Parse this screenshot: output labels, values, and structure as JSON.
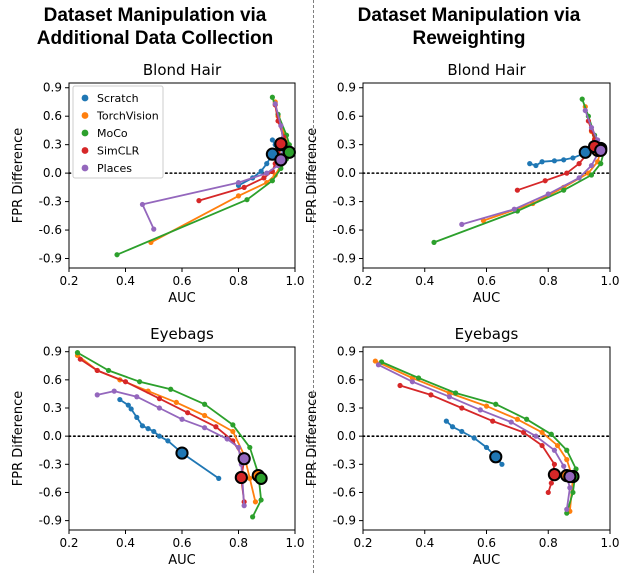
{
  "figure": {
    "column_titles": [
      [
        "Dataset Manipulation via",
        "Additional Data Collection"
      ],
      [
        "Dataset Manipulation via",
        "Reweighting"
      ]
    ]
  },
  "colors": {
    "Scratch": "#1f77b4",
    "TorchVision": "#ff7f0e",
    "MoCo": "#2ca02c",
    "SimCLR": "#d62728",
    "Places": "#9467bd"
  },
  "legend": {
    "placement": "upper-left of top-left panel",
    "entries": [
      "Scratch",
      "TorchVision",
      "MoCo",
      "SimCLR",
      "Places"
    ]
  },
  "chart_data": [
    {
      "type": "line",
      "title": "Blond Hair",
      "xlabel": "AUC",
      "ylabel": "FPR Difference",
      "xlim": [
        0.2,
        1.0
      ],
      "ylim": [
        -1.0,
        0.95
      ],
      "xticks": [
        "0.2",
        "0.4",
        "0.6",
        "0.8",
        "1.0"
      ],
      "yticks": [
        "0.9",
        "0.6",
        "0.3",
        "0.0",
        "-0.3",
        "-0.6",
        "-0.9"
      ],
      "reference_line": 0,
      "series": [
        {
          "name": "Scratch",
          "points": [
            [
              0.92,
              0.35
            ],
            [
              0.93,
              0.3
            ],
            [
              0.95,
              0.28
            ],
            [
              0.96,
              0.25
            ],
            [
              0.95,
              0.18
            ],
            [
              0.92,
              0.2
            ],
            [
              0.9,
              0.1
            ],
            [
              0.88,
              0.02
            ],
            [
              0.85,
              -0.05
            ],
            [
              0.8,
              -0.13
            ]
          ],
          "highlight": [
            0.92,
            0.2
          ]
        },
        {
          "name": "TorchVision",
          "points": [
            [
              0.93,
              0.75
            ],
            [
              0.94,
              0.6
            ],
            [
              0.96,
              0.42
            ],
            [
              0.97,
              0.33
            ],
            [
              0.97,
              0.24
            ],
            [
              0.96,
              0.15
            ],
            [
              0.95,
              0.08
            ],
            [
              0.93,
              -0.02
            ],
            [
              0.9,
              -0.1
            ],
            [
              0.8,
              -0.24
            ],
            [
              0.49,
              -0.73
            ]
          ],
          "highlight": [
            0.95,
            0.3
          ]
        },
        {
          "name": "MoCo",
          "points": [
            [
              0.92,
              0.8
            ],
            [
              0.94,
              0.62
            ],
            [
              0.97,
              0.4
            ],
            [
              0.98,
              0.3
            ],
            [
              0.98,
              0.23
            ],
            [
              0.97,
              0.15
            ],
            [
              0.95,
              0.05
            ],
            [
              0.92,
              -0.08
            ],
            [
              0.83,
              -0.28
            ],
            [
              0.37,
              -0.86
            ]
          ],
          "highlight": [
            0.98,
            0.22
          ]
        },
        {
          "name": "SimCLR",
          "points": [
            [
              0.93,
              0.72
            ],
            [
              0.94,
              0.55
            ],
            [
              0.96,
              0.38
            ],
            [
              0.95,
              0.3
            ],
            [
              0.94,
              0.22
            ],
            [
              0.93,
              0.1
            ],
            [
              0.92,
              0.02
            ],
            [
              0.89,
              -0.05
            ],
            [
              0.82,
              -0.15
            ],
            [
              0.66,
              -0.29
            ]
          ],
          "highlight": [
            0.95,
            0.31
          ]
        },
        {
          "name": "Places",
          "points": [
            [
              0.93,
              0.73
            ],
            [
              0.95,
              0.5
            ],
            [
              0.96,
              0.3
            ],
            [
              0.96,
              0.2
            ],
            [
              0.95,
              0.14
            ],
            [
              0.94,
              0.08
            ],
            [
              0.9,
              0.0
            ],
            [
              0.8,
              -0.1
            ],
            [
              0.46,
              -0.33
            ],
            [
              0.5,
              -0.59
            ]
          ],
          "highlight": [
            0.95,
            0.14
          ]
        }
      ]
    },
    {
      "type": "line",
      "title": "Blond Hair",
      "xlabel": "AUC",
      "ylabel": "FPR Difference",
      "xlim": [
        0.2,
        1.0
      ],
      "ylim": [
        -1.0,
        0.95
      ],
      "xticks": [
        "0.2",
        "0.4",
        "0.6",
        "0.8",
        "1.0"
      ],
      "yticks": [
        "0.9",
        "0.6",
        "0.3",
        "0.0",
        "-0.3",
        "-0.6",
        "-0.9"
      ],
      "reference_line": 0,
      "series": [
        {
          "name": "Scratch",
          "points": [
            [
              0.74,
              0.1
            ],
            [
              0.76,
              0.08
            ],
            [
              0.78,
              0.12
            ],
            [
              0.82,
              0.13
            ],
            [
              0.85,
              0.14
            ],
            [
              0.88,
              0.16
            ],
            [
              0.91,
              0.2
            ],
            [
              0.93,
              0.25
            ],
            [
              0.95,
              0.27
            ]
          ],
          "highlight": [
            0.92,
            0.22
          ]
        },
        {
          "name": "TorchVision",
          "points": [
            [
              0.92,
              0.7
            ],
            [
              0.94,
              0.44
            ],
            [
              0.95,
              0.36
            ],
            [
              0.96,
              0.3
            ],
            [
              0.97,
              0.24
            ],
            [
              0.96,
              0.12
            ],
            [
              0.93,
              0.0
            ],
            [
              0.85,
              -0.15
            ],
            [
              0.75,
              -0.32
            ],
            [
              0.59,
              -0.5
            ]
          ],
          "highlight": [
            0.96,
            0.24
          ]
        },
        {
          "name": "MoCo",
          "points": [
            [
              0.91,
              0.78
            ],
            [
              0.93,
              0.6
            ],
            [
              0.95,
              0.4
            ],
            [
              0.97,
              0.3
            ],
            [
              0.98,
              0.22
            ],
            [
              0.97,
              0.1
            ],
            [
              0.94,
              -0.02
            ],
            [
              0.85,
              -0.18
            ],
            [
              0.7,
              -0.4
            ],
            [
              0.43,
              -0.73
            ]
          ],
          "highlight": [
            0.97,
            0.26
          ]
        },
        {
          "name": "SimCLR",
          "points": [
            [
              0.93,
              0.55
            ],
            [
              0.94,
              0.45
            ],
            [
              0.95,
              0.35
            ],
            [
              0.94,
              0.28
            ],
            [
              0.93,
              0.22
            ],
            [
              0.9,
              0.1
            ],
            [
              0.86,
              0.0
            ],
            [
              0.79,
              -0.08
            ],
            [
              0.7,
              -0.18
            ]
          ],
          "highlight": [
            0.95,
            0.28
          ]
        },
        {
          "name": "Places",
          "points": [
            [
              0.92,
              0.66
            ],
            [
              0.94,
              0.48
            ],
            [
              0.96,
              0.35
            ],
            [
              0.97,
              0.28
            ],
            [
              0.96,
              0.2
            ],
            [
              0.94,
              0.08
            ],
            [
              0.9,
              -0.05
            ],
            [
              0.8,
              -0.22
            ],
            [
              0.69,
              -0.38
            ],
            [
              0.52,
              -0.54
            ]
          ],
          "highlight": [
            0.97,
            0.24
          ]
        }
      ]
    },
    {
      "type": "line",
      "title": "Eyebags",
      "xlabel": "AUC",
      "ylabel": "FPR Difference",
      "xlim": [
        0.2,
        1.0
      ],
      "ylim": [
        -1.0,
        0.95
      ],
      "xticks": [
        "0.2",
        "0.4",
        "0.6",
        "0.8",
        "1.0"
      ],
      "yticks": [
        "0.9",
        "0.6",
        "0.3",
        "0.0",
        "-0.3",
        "-0.6",
        "-0.9"
      ],
      "reference_line": 0,
      "series": [
        {
          "name": "Scratch",
          "points": [
            [
              0.38,
              0.39
            ],
            [
              0.41,
              0.33
            ],
            [
              0.42,
              0.29
            ],
            [
              0.44,
              0.2
            ],
            [
              0.46,
              0.11
            ],
            [
              0.48,
              0.08
            ],
            [
              0.5,
              0.05
            ],
            [
              0.52,
              0.0
            ],
            [
              0.55,
              -0.05
            ],
            [
              0.6,
              -0.18
            ],
            [
              0.73,
              -0.45
            ]
          ],
          "highlight": [
            0.6,
            -0.18
          ]
        },
        {
          "name": "TorchVision",
          "points": [
            [
              0.23,
              0.86
            ],
            [
              0.3,
              0.7
            ],
            [
              0.38,
              0.6
            ],
            [
              0.48,
              0.48
            ],
            [
              0.58,
              0.36
            ],
            [
              0.68,
              0.22
            ],
            [
              0.78,
              0.05
            ],
            [
              0.82,
              -0.2
            ],
            [
              0.84,
              -0.45
            ],
            [
              0.86,
              -0.7
            ]
          ],
          "highlight": [
            0.87,
            -0.42
          ]
        },
        {
          "name": "MoCo",
          "points": [
            [
              0.23,
              0.89
            ],
            [
              0.34,
              0.7
            ],
            [
              0.45,
              0.58
            ],
            [
              0.56,
              0.5
            ],
            [
              0.68,
              0.34
            ],
            [
              0.78,
              0.12
            ],
            [
              0.84,
              -0.12
            ],
            [
              0.87,
              -0.4
            ],
            [
              0.88,
              -0.68
            ],
            [
              0.85,
              -0.86
            ]
          ],
          "highlight": [
            0.88,
            -0.45
          ]
        },
        {
          "name": "SimCLR",
          "points": [
            [
              0.24,
              0.82
            ],
            [
              0.3,
              0.7
            ],
            [
              0.4,
              0.58
            ],
            [
              0.52,
              0.4
            ],
            [
              0.62,
              0.25
            ],
            [
              0.72,
              0.1
            ],
            [
              0.78,
              -0.05
            ],
            [
              0.82,
              -0.25
            ],
            [
              0.81,
              -0.45
            ],
            [
              0.82,
              -0.7
            ]
          ],
          "highlight": [
            0.81,
            -0.44
          ]
        },
        {
          "name": "Places",
          "points": [
            [
              0.3,
              0.44
            ],
            [
              0.36,
              0.48
            ],
            [
              0.44,
              0.42
            ],
            [
              0.52,
              0.3
            ],
            [
              0.6,
              0.18
            ],
            [
              0.68,
              0.09
            ],
            [
              0.76,
              -0.03
            ],
            [
              0.8,
              -0.12
            ],
            [
              0.81,
              -0.3
            ],
            [
              0.82,
              -0.74
            ]
          ],
          "highlight": [
            0.82,
            -0.24
          ]
        }
      ]
    },
    {
      "type": "line",
      "title": "Eyebags",
      "xlabel": "AUC",
      "ylabel": "FPR Difference",
      "xlim": [
        0.2,
        1.0
      ],
      "ylim": [
        -1.0,
        0.95
      ],
      "xticks": [
        "0.2",
        "0.4",
        "0.6",
        "0.8",
        "1.0"
      ],
      "yticks": [
        "0.9",
        "0.6",
        "0.3",
        "0.0",
        "-0.3",
        "-0.6",
        "-0.9"
      ],
      "reference_line": 0,
      "series": [
        {
          "name": "Scratch",
          "points": [
            [
              0.47,
              0.16
            ],
            [
              0.49,
              0.1
            ],
            [
              0.52,
              0.05
            ],
            [
              0.56,
              -0.02
            ],
            [
              0.6,
              -0.12
            ],
            [
              0.63,
              -0.22
            ],
            [
              0.65,
              -0.3
            ]
          ],
          "highlight": [
            0.63,
            -0.22
          ]
        },
        {
          "name": "TorchVision",
          "points": [
            [
              0.24,
              0.8
            ],
            [
              0.36,
              0.62
            ],
            [
              0.48,
              0.46
            ],
            [
              0.6,
              0.32
            ],
            [
              0.7,
              0.18
            ],
            [
              0.78,
              0.04
            ],
            [
              0.83,
              -0.1
            ],
            [
              0.86,
              -0.25
            ],
            [
              0.88,
              -0.45
            ],
            [
              0.87,
              -0.8
            ]
          ],
          "highlight": [
            0.86,
            -0.42
          ]
        },
        {
          "name": "MoCo",
          "points": [
            [
              0.26,
              0.79
            ],
            [
              0.38,
              0.62
            ],
            [
              0.5,
              0.46
            ],
            [
              0.63,
              0.34
            ],
            [
              0.73,
              0.18
            ],
            [
              0.81,
              0.02
            ],
            [
              0.86,
              -0.15
            ],
            [
              0.89,
              -0.35
            ],
            [
              0.88,
              -0.6
            ],
            [
              0.86,
              -0.82
            ]
          ],
          "highlight": [
            0.88,
            -0.43
          ]
        },
        {
          "name": "SimCLR",
          "points": [
            [
              0.32,
              0.54
            ],
            [
              0.42,
              0.44
            ],
            [
              0.52,
              0.3
            ],
            [
              0.62,
              0.16
            ],
            [
              0.72,
              0.04
            ],
            [
              0.78,
              -0.1
            ],
            [
              0.82,
              -0.3
            ],
            [
              0.81,
              -0.5
            ],
            [
              0.8,
              -0.6
            ]
          ],
          "highlight": [
            0.82,
            -0.41
          ]
        },
        {
          "name": "Places",
          "points": [
            [
              0.25,
              0.76
            ],
            [
              0.36,
              0.58
            ],
            [
              0.48,
              0.42
            ],
            [
              0.58,
              0.28
            ],
            [
              0.68,
              0.15
            ],
            [
              0.76,
              0.0
            ],
            [
              0.82,
              -0.15
            ],
            [
              0.85,
              -0.32
            ],
            [
              0.87,
              -0.55
            ],
            [
              0.86,
              -0.78
            ]
          ],
          "highlight": [
            0.87,
            -0.43
          ]
        }
      ]
    }
  ]
}
